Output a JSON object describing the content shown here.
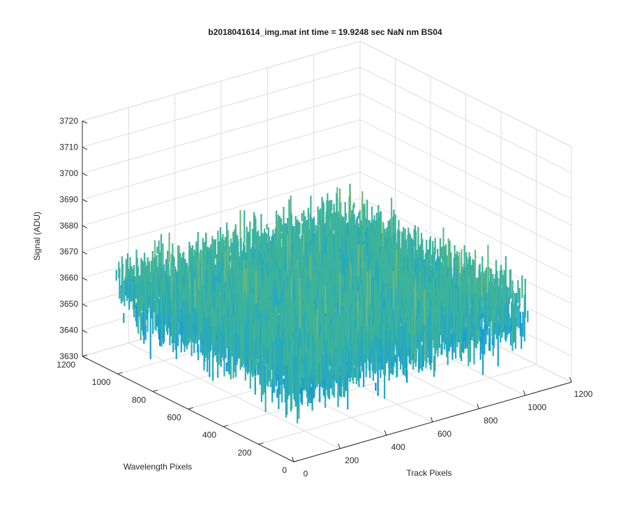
{
  "chart_data": {
    "type": "surface3d",
    "title": "b2018041614_img.mat int time = 19.9248 sec  NaN nm BS04",
    "xlabel": "Track Pixels",
    "ylabel": "Wavelength Pixels",
    "zlabel": "Signal (ADU)",
    "xlim": [
      0,
      1200
    ],
    "ylim": [
      0,
      1200
    ],
    "zlim": [
      3630,
      3720
    ],
    "x_ticks": [
      "0",
      "200",
      "400",
      "600",
      "800",
      "1000",
      "1200"
    ],
    "y_ticks": [
      "0",
      "200",
      "400",
      "600",
      "800",
      "1000",
      "1200"
    ],
    "z_ticks": [
      "3630",
      "3640",
      "3650",
      "3660",
      "3670",
      "3680",
      "3690",
      "3700",
      "3710",
      "3720"
    ],
    "data_extent": {
      "x": [
        1,
        1024
      ],
      "y": [
        1,
        1024
      ]
    },
    "mean_signal": 3660,
    "signal_range": [
      3632,
      3712
    ],
    "grid": true,
    "colormap": [
      "#0072bd",
      "#0b8bd0",
      "#1a9fd0",
      "#2aaab9",
      "#3db39a",
      "#6eb87c",
      "#a5bb67",
      "#d2bb48",
      "#edbe3c"
    ]
  }
}
